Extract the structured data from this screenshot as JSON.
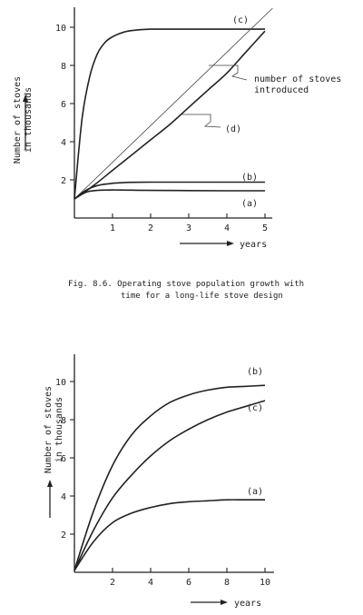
{
  "caption": {
    "line1": "Fig. 8.6.  Operating stove population growth with",
    "line2": "time for a long-life stove design"
  },
  "chart_data": [
    {
      "type": "line",
      "ylabel_line1": "Number of stoves",
      "ylabel_line2": "in thousands",
      "xlabel": "years",
      "xlim": [
        0,
        5.3
      ],
      "ylim": [
        0,
        11
      ],
      "xticks": [
        1,
        2,
        3,
        4,
        5
      ],
      "yticks": [
        2,
        4,
        6,
        8,
        10
      ],
      "series": [
        {
          "name": "(c)",
          "x": [
            0,
            0.2,
            0.4,
            0.6,
            0.8,
            1,
            1.3,
            1.6,
            2,
            2.5,
            3,
            4,
            5
          ],
          "y": [
            1,
            5.2,
            7.4,
            8.6,
            9.2,
            9.5,
            9.75,
            9.85,
            9.9,
            9.9,
            9.9,
            9.9,
            9.9
          ]
        },
        {
          "name": "(d)",
          "x": [
            0,
            0.5,
            1,
            1.5,
            2,
            2.5,
            3,
            3.5,
            4,
            4.5,
            5
          ],
          "y": [
            1,
            1.7,
            2.5,
            3.3,
            4.1,
            4.9,
            5.8,
            6.7,
            7.6,
            8.7,
            9.8
          ]
        },
        {
          "name": "number of stoves introduced",
          "x": [
            0,
            5.2
          ],
          "y": [
            1,
            11
          ]
        },
        {
          "name": "(b)",
          "x": [
            0,
            0.3,
            0.6,
            1,
            1.5,
            2,
            3,
            4,
            5
          ],
          "y": [
            1,
            1.45,
            1.7,
            1.82,
            1.87,
            1.88,
            1.88,
            1.88,
            1.88
          ]
        },
        {
          "name": "(a)",
          "x": [
            0,
            0.3,
            0.6,
            1,
            1.5,
            2,
            3,
            4,
            5
          ],
          "y": [
            1,
            1.35,
            1.45,
            1.47,
            1.46,
            1.45,
            1.44,
            1.43,
            1.43
          ]
        }
      ],
      "annotations": [
        "(c)",
        "number of stoves",
        "introduced",
        "(d)",
        "(b)",
        "(a)"
      ]
    },
    {
      "type": "line",
      "ylabel_line1": "Number of stoves",
      "ylabel_line2": "in thousands",
      "xlabel": "years",
      "xlim": [
        0,
        10.5
      ],
      "ylim": [
        0,
        11
      ],
      "xticks": [
        2,
        4,
        6,
        8,
        10
      ],
      "yticks": [
        2,
        4,
        6,
        8,
        10
      ],
      "series": [
        {
          "name": "(b)",
          "x": [
            0,
            1,
            2,
            3,
            4,
            5,
            6,
            7,
            8,
            9,
            10
          ],
          "y": [
            0.1,
            3.2,
            5.6,
            7.2,
            8.2,
            8.9,
            9.3,
            9.55,
            9.7,
            9.75,
            9.8
          ]
        },
        {
          "name": "(c)",
          "x": [
            0,
            1,
            2,
            3,
            4,
            5,
            6,
            7,
            8,
            9,
            10
          ],
          "y": [
            0.1,
            2.2,
            3.9,
            5.1,
            6.1,
            6.9,
            7.5,
            8.0,
            8.4,
            8.7,
            9.0
          ]
        },
        {
          "name": "(a)",
          "x": [
            0,
            1,
            2,
            3,
            4,
            5,
            6,
            7,
            8,
            9,
            10
          ],
          "y": [
            0.1,
            1.6,
            2.6,
            3.1,
            3.4,
            3.6,
            3.7,
            3.75,
            3.8,
            3.8,
            3.8
          ]
        }
      ],
      "annotations": [
        "(b)",
        "(c)",
        "(a)"
      ]
    }
  ]
}
